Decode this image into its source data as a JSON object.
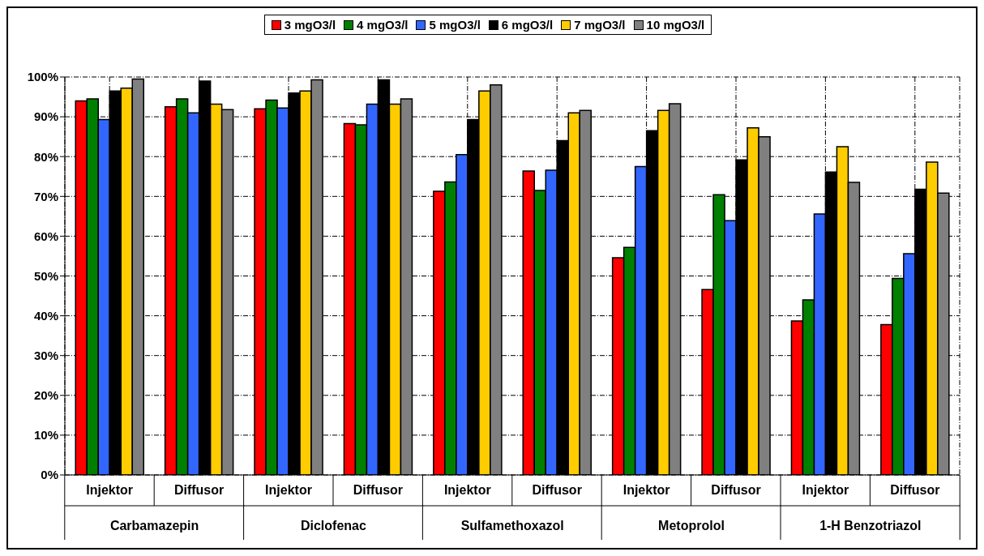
{
  "chart_data": {
    "type": "bar",
    "categories": [
      "Injektor",
      "Diffusor",
      "Injektor",
      "Diffusor",
      "Injektor",
      "Diffusor",
      "Injektor",
      "Diffusor",
      "Injektor",
      "Diffusor"
    ],
    "annotations": [
      "Carbamazepin",
      "Diclofenac",
      "Sulfamethoxazol",
      "Metoprolol",
      "1-H Benzotriazol"
    ],
    "series": [
      {
        "name": "3 mgO3/l",
        "color": "#ff0000",
        "values": [
          94.0,
          92.5,
          92.0,
          88.3,
          71.3,
          76.4,
          54.6,
          46.6,
          38.7,
          37.8
        ]
      },
      {
        "name": "4 mgO3/l",
        "color": "#008000",
        "values": [
          94.5,
          94.5,
          94.2,
          88.0,
          73.6,
          71.5,
          57.2,
          70.4,
          44.0,
          49.4
        ]
      },
      {
        "name": "5 mgO3/l",
        "color": "#3366ff",
        "values": [
          89.3,
          91.0,
          92.2,
          93.2,
          80.5,
          76.6,
          77.5,
          63.9,
          65.6,
          55.6
        ]
      },
      {
        "name": "6 mgO3/l",
        "color": "#000000",
        "values": [
          96.5,
          99.0,
          96.0,
          99.3,
          89.3,
          84.0,
          86.5,
          79.2,
          76.1,
          71.8
        ]
      },
      {
        "name": "7 mgO3/l",
        "color": "#ffcc00",
        "values": [
          97.2,
          93.2,
          96.5,
          93.2,
          96.5,
          91.0,
          91.6,
          87.2,
          82.5,
          78.6
        ]
      },
      {
        "name": "10 mgO3/l",
        "color": "#808080",
        "values": [
          99.5,
          91.8,
          99.3,
          94.5,
          98.0,
          91.6,
          93.3,
          85.0,
          73.5,
          70.8
        ]
      }
    ],
    "ylim": [
      0,
      100
    ],
    "yticks": [
      {
        "value": 0,
        "label": "0%"
      },
      {
        "value": 10,
        "label": "10%"
      },
      {
        "value": 20,
        "label": "20%"
      },
      {
        "value": 30,
        "label": "30%"
      },
      {
        "value": 40,
        "label": "40%"
      },
      {
        "value": 50,
        "label": "50%"
      },
      {
        "value": 60,
        "label": "60%"
      },
      {
        "value": 70,
        "label": "70%"
      },
      {
        "value": 80,
        "label": "80%"
      },
      {
        "value": 90,
        "label": "90%"
      },
      {
        "value": 100,
        "label": "100%"
      }
    ],
    "grid": true,
    "legend": "top"
  }
}
